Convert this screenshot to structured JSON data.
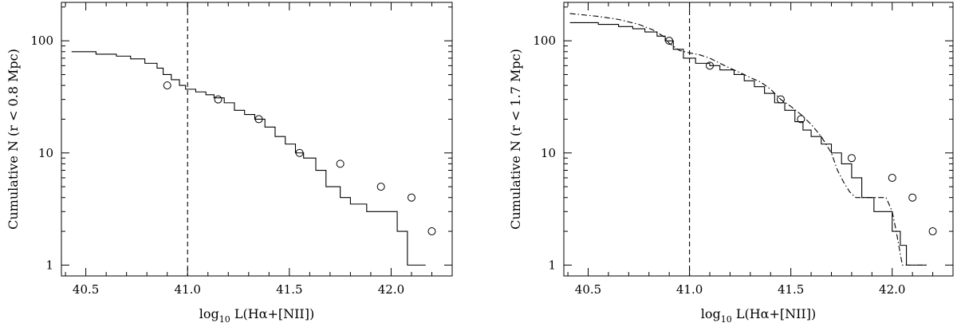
{
  "chart_data": [
    {
      "type": "line",
      "xlabel_main": "log",
      "xlabel_sub": "10",
      "xlabel_rest": " L(Hα+[NII])",
      "ylabel": "Cumulative N (r < 0.8 Mpc)",
      "xlim": [
        40.38,
        42.3
      ],
      "ylim": [
        0.8,
        220
      ],
      "yscale": "log",
      "x_ticks": [
        40.5,
        41.0,
        41.5,
        42.0
      ],
      "x_tick_labels": [
        "40.5",
        "41.0",
        "41.5",
        "42.0"
      ],
      "y_ticks": [
        1,
        10,
        100
      ],
      "y_tick_labels": [
        "1",
        "10",
        "100"
      ],
      "vline_x": 41.0,
      "series": [
        {
          "style": "step",
          "x": [
            40.43,
            40.55,
            40.65,
            40.72,
            40.79,
            40.85,
            40.88,
            40.92,
            40.96,
            40.99,
            41.04,
            41.09,
            41.13,
            41.18,
            41.23,
            41.28,
            41.33,
            41.38,
            41.43,
            41.48,
            41.53,
            41.57,
            41.63,
            41.68,
            41.75,
            41.8,
            41.88,
            42.03,
            42.08,
            42.17
          ],
          "y": [
            80,
            76,
            73,
            69,
            63,
            57,
            50,
            45,
            40,
            37,
            35,
            33,
            31,
            28,
            24,
            22,
            20,
            17,
            14,
            12,
            10,
            9,
            7,
            5,
            4,
            3.5,
            3,
            2,
            1,
            1
          ]
        }
      ],
      "points": {
        "x": [
          40.9,
          41.15,
          41.35,
          41.55,
          41.75,
          41.95,
          42.1,
          42.2
        ],
        "y": [
          40,
          30,
          20,
          10,
          8,
          5,
          4,
          2
        ]
      }
    },
    {
      "type": "line",
      "xlabel_main": "log",
      "xlabel_sub": "10",
      "xlabel_rest": " L(Hα+[NII])",
      "ylabel": "Cumulative N (r < 1.7 Mpc)",
      "xlim": [
        40.38,
        42.3
      ],
      "ylim": [
        0.8,
        220
      ],
      "yscale": "log",
      "x_ticks": [
        40.5,
        41.0,
        41.5,
        42.0
      ],
      "x_tick_labels": [
        "40.5",
        "41.0",
        "41.5",
        "42.0"
      ],
      "y_ticks": [
        1,
        10,
        100
      ],
      "y_tick_labels": [
        "1",
        "10",
        "100"
      ],
      "vline_x": 41.0,
      "series": [
        {
          "style": "step",
          "x": [
            40.41,
            40.55,
            40.65,
            40.72,
            40.78,
            40.84,
            40.88,
            40.92,
            40.97,
            41.03,
            41.1,
            41.15,
            41.22,
            41.27,
            41.32,
            41.37,
            41.42,
            41.47,
            41.52,
            41.56,
            41.6,
            41.65,
            41.7,
            41.75,
            41.8,
            41.85,
            41.91,
            41.97,
            42.0,
            42.04,
            42.07,
            42.17
          ],
          "y": [
            145,
            140,
            134,
            128,
            120,
            110,
            100,
            84,
            70,
            63,
            60,
            55,
            50,
            44,
            39,
            34,
            28,
            24,
            19,
            16,
            14,
            12,
            10,
            8,
            6,
            4,
            3,
            3,
            2,
            1.5,
            1,
            1
          ]
        },
        {
          "style": "dashdot",
          "x": [
            40.41,
            40.55,
            40.65,
            40.75,
            40.82,
            40.87,
            40.9,
            40.95,
            41.0,
            41.05,
            41.1,
            41.15,
            41.2,
            41.25,
            41.3,
            41.35,
            41.4,
            41.45,
            41.5,
            41.55,
            41.6,
            41.65,
            41.7,
            41.73,
            41.76,
            41.79,
            41.82,
            41.86,
            41.92,
            41.97,
            42.0,
            42.02,
            42.05,
            42.1,
            42.17
          ],
          "y": [
            175,
            165,
            155,
            140,
            125,
            110,
            95,
            82,
            78,
            75,
            70,
            63,
            57,
            52,
            47,
            43,
            37,
            30,
            26,
            22,
            18,
            14,
            10,
            7,
            5.5,
            4.5,
            4,
            4,
            4,
            4,
            3,
            2,
            1,
            1,
            1
          ]
        }
      ],
      "points": {
        "x": [
          40.9,
          41.1,
          41.45,
          41.55,
          41.8,
          42.0,
          42.1,
          42.2
        ],
        "y": [
          100,
          60,
          30,
          20,
          9,
          6,
          4,
          2
        ]
      }
    }
  ]
}
